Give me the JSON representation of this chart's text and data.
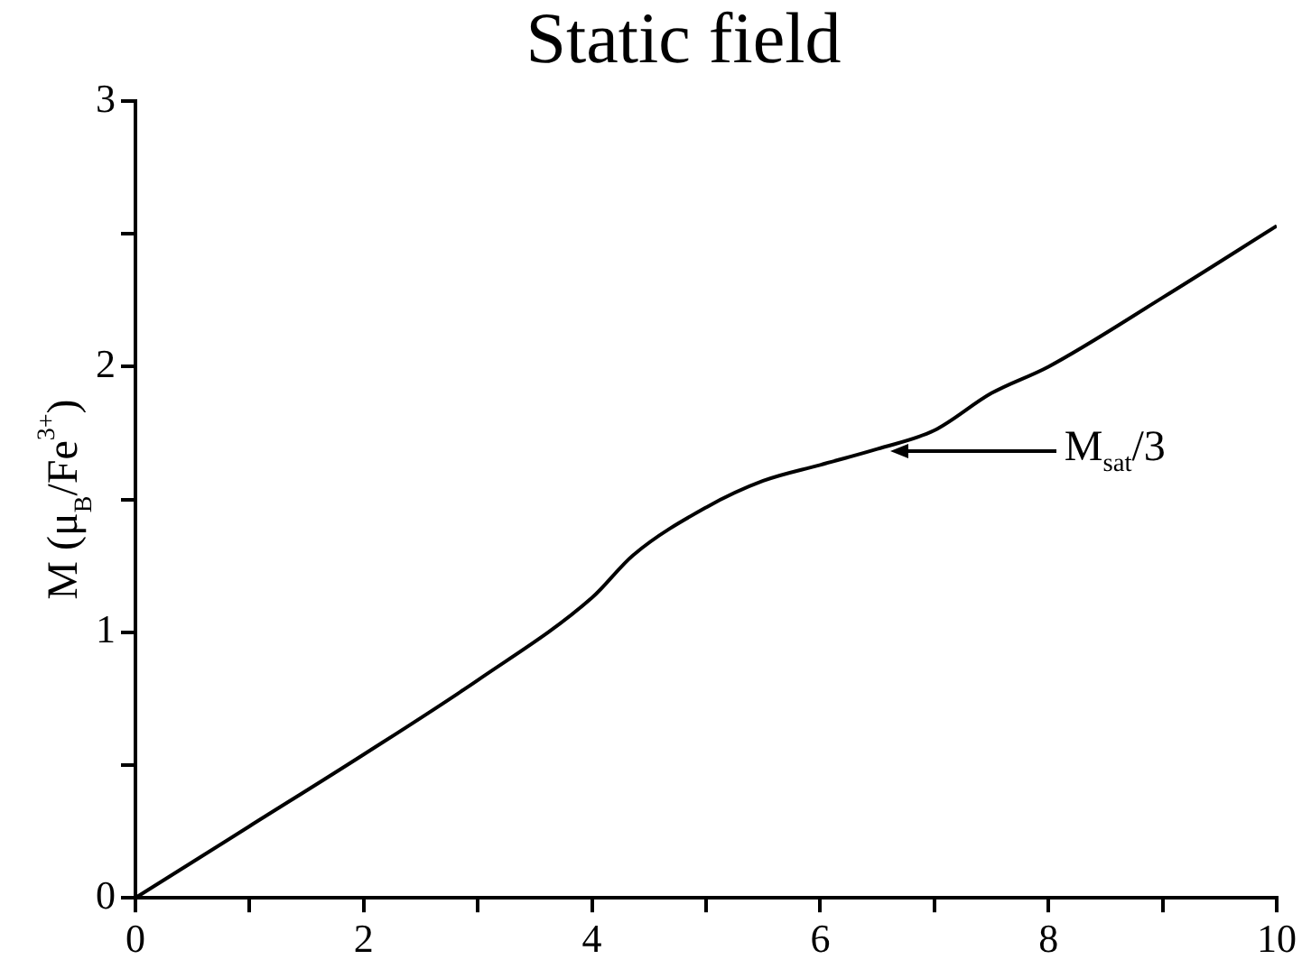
{
  "chart_data": {
    "type": "line",
    "title": "Static field",
    "ylabel": "M (μ$_{B}$/Fe$^{3+}$)",
    "x": [
      0,
      1,
      2,
      3,
      4,
      4.36,
      5,
      5.5,
      6,
      6.5,
      7,
      7.5,
      8,
      9,
      10
    ],
    "series": [
      {
        "color": "#000000",
        "values": [
          0,
          0.27,
          0.54,
          0.82,
          1.13,
          1.29,
          1.47,
          1.57,
          1.63,
          1.69,
          1.76,
          1.9,
          2.0,
          2.26,
          2.53
        ]
      }
    ],
    "xlim": [
      0,
      10
    ],
    "ylim": [
      0,
      3
    ],
    "xticks": [
      0,
      {
        "value": 1,
        "label": null
      },
      2,
      {
        "value": 3,
        "label": null
      },
      4,
      {
        "value": 5,
        "label": null
      },
      6,
      {
        "value": 7,
        "label": null
      },
      8,
      {
        "value": 9,
        "label": null
      },
      10
    ],
    "yticks": [
      0,
      {
        "value": 0.5,
        "label": null
      },
      1,
      {
        "value": 1.5,
        "label": null
      },
      2,
      {
        "value": 2.5,
        "label": null
      },
      3
    ],
    "annotations": [
      "M$_{sat}$/3"
    ],
    "grid": false,
    "legend": false,
    "marker": "none",
    "line_style": "solid"
  }
}
